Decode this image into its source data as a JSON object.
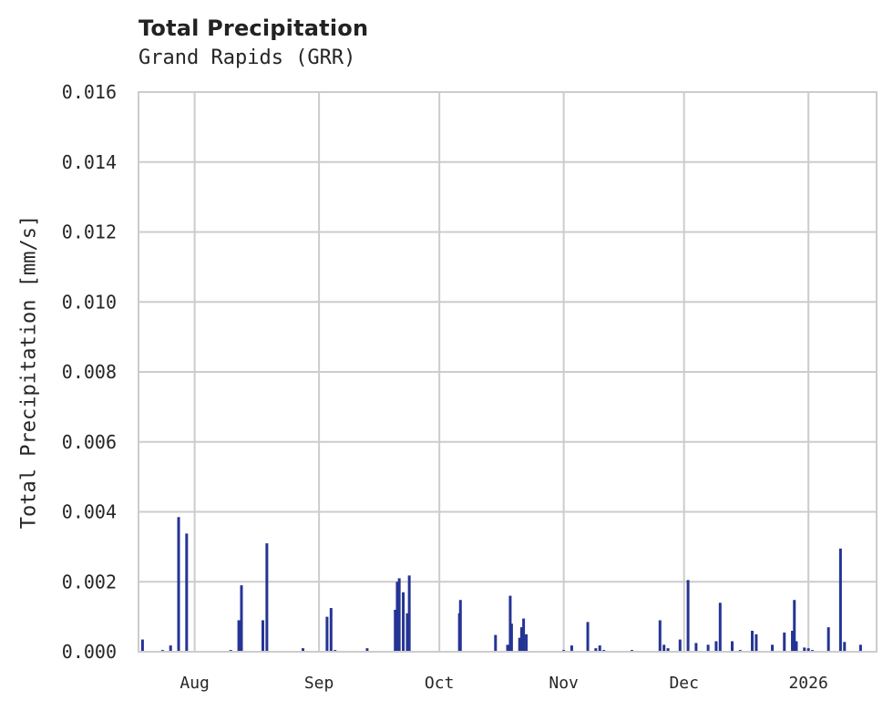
{
  "chart_data": {
    "type": "bar",
    "title": "Total Precipitation",
    "subtitle": "Grand Rapids (GRR)",
    "xlabel": "",
    "ylabel": "Total Precipitation [mm/s]",
    "ylim": [
      0,
      0.016
    ],
    "yticks": [
      "0.000",
      "0.002",
      "0.004",
      "0.006",
      "0.008",
      "0.010",
      "0.012",
      "0.014",
      "0.016"
    ],
    "xlim": [
      "2025-07-18",
      "2026-01-18"
    ],
    "xticks": [
      {
        "label": "Aug",
        "date": "2025-08-01"
      },
      {
        "label": "Sep",
        "date": "2025-09-01"
      },
      {
        "label": "Oct",
        "date": "2025-10-01"
      },
      {
        "label": "Nov",
        "date": "2025-11-01"
      },
      {
        "label": "Dec",
        "date": "2025-12-01"
      },
      {
        "label": "2026",
        "date": "2026-01-01"
      }
    ],
    "grid": true,
    "color": "#253494",
    "points": [
      {
        "x": "2025-07-19",
        "y": 0.00035
      },
      {
        "x": "2025-07-24",
        "y": 5e-05
      },
      {
        "x": "2025-07-26",
        "y": 0.00018
      },
      {
        "x": "2025-07-28",
        "y": 0.00385
      },
      {
        "x": "2025-07-30",
        "y": 0.00338
      },
      {
        "x": "2025-08-10",
        "y": 5e-05
      },
      {
        "x": "2025-08-12",
        "y": 0.0009
      },
      {
        "x": "2025-08-12T16",
        "y": 0.0019
      },
      {
        "x": "2025-08-18",
        "y": 0.0009
      },
      {
        "x": "2025-08-19",
        "y": 0.0031
      },
      {
        "x": "2025-08-28",
        "y": 0.0001
      },
      {
        "x": "2025-09-03",
        "y": 0.001
      },
      {
        "x": "2025-09-04",
        "y": 0.00125
      },
      {
        "x": "2025-09-05",
        "y": 5e-05
      },
      {
        "x": "2025-09-13",
        "y": 0.0001
      },
      {
        "x": "2025-09-20",
        "y": 0.0012
      },
      {
        "x": "2025-09-20T12",
        "y": 0.002
      },
      {
        "x": "2025-09-21",
        "y": 0.0021
      },
      {
        "x": "2025-09-22",
        "y": 0.0017
      },
      {
        "x": "2025-09-23",
        "y": 0.0011
      },
      {
        "x": "2025-09-23T12",
        "y": 0.00218
      },
      {
        "x": "2025-10-06",
        "y": 0.0011
      },
      {
        "x": "2025-10-06T06",
        "y": 0.00148
      },
      {
        "x": "2025-10-15",
        "y": 0.00048
      },
      {
        "x": "2025-10-18",
        "y": 0.0002
      },
      {
        "x": "2025-10-18T16",
        "y": 0.0016
      },
      {
        "x": "2025-10-19",
        "y": 0.0008
      },
      {
        "x": "2025-10-21",
        "y": 0.0004
      },
      {
        "x": "2025-10-21T12",
        "y": 0.0007
      },
      {
        "x": "2025-10-22",
        "y": 0.00095
      },
      {
        "x": "2025-10-22T16",
        "y": 0.0005
      },
      {
        "x": "2025-11-01",
        "y": 5e-05
      },
      {
        "x": "2025-11-03",
        "y": 0.00018
      },
      {
        "x": "2025-11-07",
        "y": 0.00085
      },
      {
        "x": "2025-11-09",
        "y": 0.0001
      },
      {
        "x": "2025-11-10",
        "y": 0.00018
      },
      {
        "x": "2025-11-11",
        "y": 5e-05
      },
      {
        "x": "2025-11-18",
        "y": 5e-05
      },
      {
        "x": "2025-11-25",
        "y": 0.0009
      },
      {
        "x": "2025-11-26",
        "y": 0.0002
      },
      {
        "x": "2025-11-27",
        "y": 0.0001
      },
      {
        "x": "2025-11-30",
        "y": 0.00035
      },
      {
        "x": "2025-12-02",
        "y": 0.00205
      },
      {
        "x": "2025-12-04",
        "y": 0.00025
      },
      {
        "x": "2025-12-07",
        "y": 0.0002
      },
      {
        "x": "2025-12-09",
        "y": 0.0003
      },
      {
        "x": "2025-12-10",
        "y": 0.0014
      },
      {
        "x": "2025-12-13",
        "y": 0.0003
      },
      {
        "x": "2025-12-15",
        "y": 5e-05
      },
      {
        "x": "2025-12-18",
        "y": 0.0006
      },
      {
        "x": "2025-12-19",
        "y": 0.0005
      },
      {
        "x": "2025-12-23",
        "y": 0.0002
      },
      {
        "x": "2025-12-26",
        "y": 0.00055
      },
      {
        "x": "2025-12-28",
        "y": 0.0006
      },
      {
        "x": "2025-12-28T12",
        "y": 0.00148
      },
      {
        "x": "2025-12-29",
        "y": 0.0003
      },
      {
        "x": "2025-12-31",
        "y": 0.00012
      },
      {
        "x": "2026-01-01",
        "y": 0.0001
      },
      {
        "x": "2026-01-02",
        "y": 5e-05
      },
      {
        "x": "2026-01-06",
        "y": 0.0007
      },
      {
        "x": "2026-01-09",
        "y": 0.00295
      },
      {
        "x": "2026-01-10",
        "y": 0.00028
      },
      {
        "x": "2026-01-14",
        "y": 0.0002
      }
    ]
  }
}
